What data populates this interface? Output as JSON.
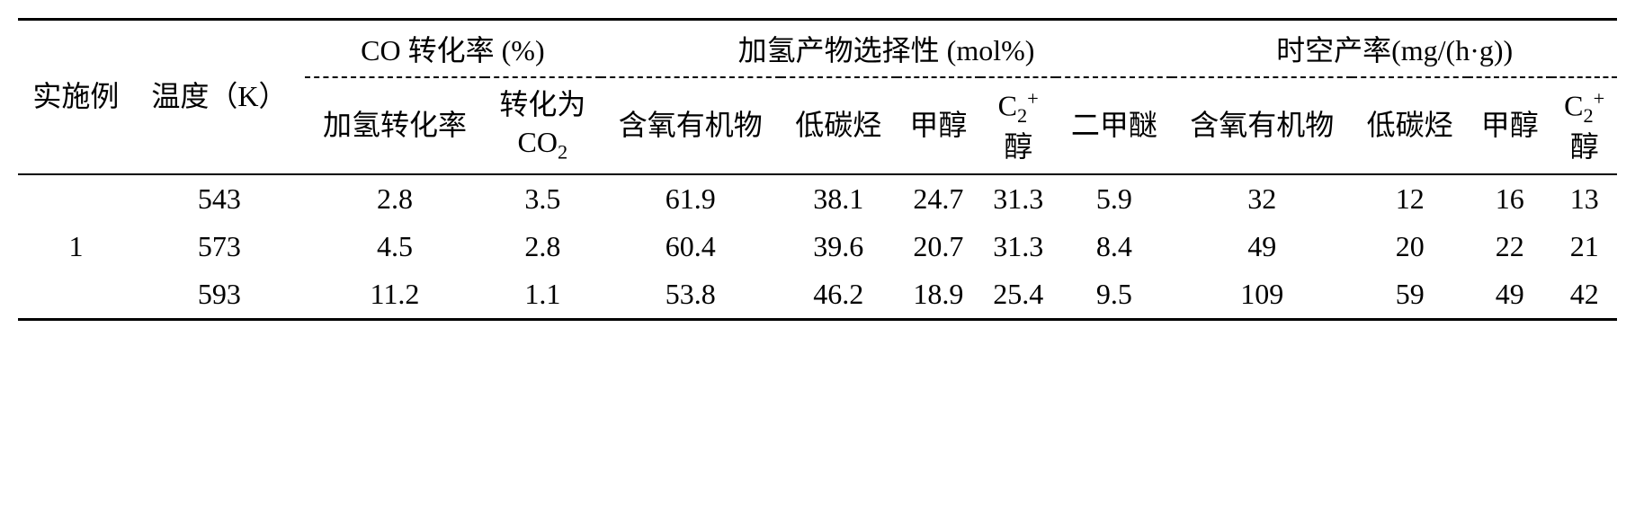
{
  "table": {
    "type": "table",
    "background_color": "#ffffff",
    "text_color": "#000000",
    "font_family": "Times New Roman, SimSun, serif",
    "header_fontsize": 32,
    "body_fontsize": 32,
    "border_color": "#000000",
    "top_border_width": 3,
    "bottom_border_width": 3,
    "inner_border_width": 2,
    "headers": {
      "col_example": "实施例",
      "col_temperature": "温度（K）",
      "group_co_conversion": "CO 转化率 (%)",
      "group_selectivity": "加氢产物选择性  (mol%)",
      "group_space_time_yield": "时空产率(mg/(h·g))",
      "sub_hydro_conversion": "加氢转化率",
      "sub_to_co2_prefix": "转化为",
      "sub_to_co2_co": "CO",
      "sub_to_co2_sub": "2",
      "sub_oxygen_organics": "含氧有机物",
      "sub_low_carbon": "低碳烃",
      "sub_methanol": "甲醇",
      "sub_c2_alcohol_c": "C",
      "sub_c2_alcohol_sub": "2",
      "sub_c2_alcohol_sup": "+",
      "sub_c2_alcohol_suffix": "醇",
      "sub_dme": "二甲醚"
    },
    "rows": [
      {
        "example": "",
        "temperature": "543",
        "hydro_conv": "2.8",
        "to_co2": "3.5",
        "sel_oxy": "61.9",
        "sel_lc": "38.1",
        "sel_meoh": "24.7",
        "sel_c2": "31.3",
        "sel_dme": "5.9",
        "sty_oxy": "32",
        "sty_lc": "12",
        "sty_meoh": "16",
        "sty_c2": "13"
      },
      {
        "example": "1",
        "temperature": "573",
        "hydro_conv": "4.5",
        "to_co2": "2.8",
        "sel_oxy": "60.4",
        "sel_lc": "39.6",
        "sel_meoh": "20.7",
        "sel_c2": "31.3",
        "sel_dme": "8.4",
        "sty_oxy": "49",
        "sty_lc": "20",
        "sty_meoh": "22",
        "sty_c2": "21"
      },
      {
        "example": "",
        "temperature": "593",
        "hydro_conv": "11.2",
        "to_co2": "1.1",
        "sel_oxy": "53.8",
        "sel_lc": "46.2",
        "sel_meoh": "18.9",
        "sel_c2": "25.4",
        "sel_dme": "9.5",
        "sty_oxy": "109",
        "sty_lc": "59",
        "sty_meoh": "49",
        "sty_c2": "42"
      }
    ]
  }
}
